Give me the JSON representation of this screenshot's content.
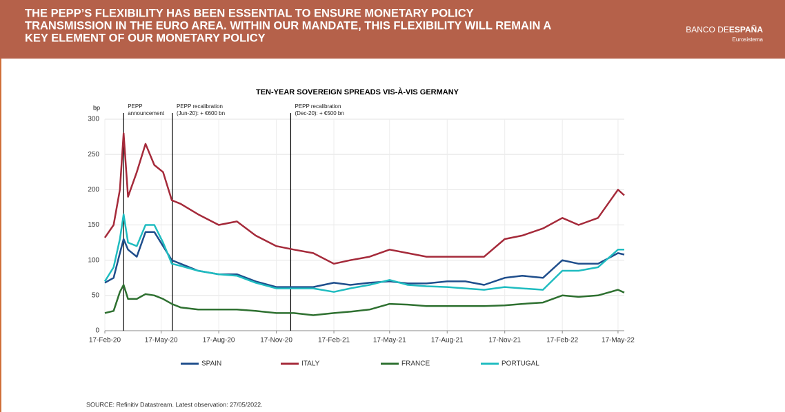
{
  "header": {
    "title_lines": [
      "THE PEPP’S FLEXIBILITY HAS BEEN ESSENTIAL TO ENSURE MONETARY POLICY",
      "TRANSMISSION IN THE EURO AREA. WITHIN OUR MANDATE, THIS FLEXIBILITY WILL REMAIN A",
      "KEY ELEMENT OF OUR MONETARY POLICY"
    ],
    "logo_light": "BANCO DE",
    "logo_bold": "ESPAÑA",
    "logo_sub": "Eurosistema"
  },
  "chart_data": {
    "type": "line",
    "title": "TEN-YEAR SOVEREIGN SPREADS VIS-À-VIS GERMANY",
    "y_label": "bp",
    "x": [
      "2020-02-17",
      "2020-03-02",
      "2020-03-12",
      "2020-03-18",
      "2020-03-25",
      "2020-04-08",
      "2020-04-22",
      "2020-05-06",
      "2020-05-20",
      "2020-06-03",
      "2020-06-17",
      "2020-07-15",
      "2020-08-17",
      "2020-09-15",
      "2020-10-15",
      "2020-11-17",
      "2020-12-15",
      "2021-01-15",
      "2021-02-17",
      "2021-03-15",
      "2021-04-15",
      "2021-05-17",
      "2021-06-15",
      "2021-07-15",
      "2021-08-17",
      "2021-09-15",
      "2021-10-15",
      "2021-11-17",
      "2021-12-15",
      "2022-01-17",
      "2022-02-17",
      "2022-03-15",
      "2022-04-15",
      "2022-05-17",
      "2022-05-27"
    ],
    "series": [
      {
        "name": "SPAIN",
        "color": "#1f4e8c",
        "values": [
          68,
          75,
          110,
          130,
          115,
          105,
          140,
          140,
          120,
          100,
          95,
          85,
          80,
          80,
          70,
          62,
          62,
          62,
          68,
          65,
          68,
          70,
          67,
          67,
          70,
          70,
          65,
          75,
          78,
          75,
          100,
          95,
          95,
          110,
          108
        ]
      },
      {
        "name": "ITALY",
        "color": "#a52a3a",
        "values": [
          132,
          150,
          200,
          280,
          190,
          225,
          265,
          235,
          225,
          185,
          180,
          165,
          150,
          155,
          135,
          120,
          115,
          110,
          95,
          100,
          105,
          115,
          110,
          105,
          105,
          105,
          105,
          130,
          135,
          145,
          160,
          150,
          160,
          200,
          192
        ]
      },
      {
        "name": "FRANCE",
        "color": "#2e7030",
        "values": [
          25,
          28,
          55,
          65,
          45,
          45,
          52,
          50,
          45,
          38,
          33,
          30,
          30,
          30,
          28,
          25,
          25,
          22,
          25,
          27,
          30,
          38,
          37,
          35,
          35,
          35,
          35,
          36,
          38,
          40,
          50,
          48,
          50,
          58,
          54
        ]
      },
      {
        "name": "PORTUGAL",
        "color": "#1fbcc0",
        "values": [
          70,
          90,
          130,
          165,
          125,
          120,
          150,
          150,
          125,
          95,
          92,
          85,
          80,
          78,
          68,
          60,
          60,
          60,
          55,
          60,
          65,
          72,
          65,
          63,
          62,
          60,
          58,
          62,
          60,
          58,
          85,
          85,
          90,
          115,
          115
        ]
      }
    ],
    "xlim": [
      "2020-02-17",
      "2022-05-27"
    ],
    "xticks": [
      {
        "value": "2020-02-17",
        "label": "17-Feb-20"
      },
      {
        "value": "2020-05-17",
        "label": "17-May-20"
      },
      {
        "value": "2020-08-17",
        "label": "17-Aug-20"
      },
      {
        "value": "2020-11-17",
        "label": "17-Nov-20"
      },
      {
        "value": "2021-02-17",
        "label": "17-Feb-21"
      },
      {
        "value": "2021-05-17",
        "label": "17-May-21"
      },
      {
        "value": "2021-08-17",
        "label": "17-Aug-21"
      },
      {
        "value": "2021-11-17",
        "label": "17-Nov-21"
      },
      {
        "value": "2022-02-17",
        "label": "17-Feb-22"
      },
      {
        "value": "2022-05-17",
        "label": "17-May-22"
      }
    ],
    "ylim": [
      0,
      300
    ],
    "yticks": [
      0,
      50,
      100,
      150,
      200,
      250,
      300
    ],
    "grid": true,
    "annotations": [
      {
        "x": "2020-03-18",
        "lines": [
          "PEPP",
          "announcement"
        ]
      },
      {
        "x": "2020-06-04",
        "lines": [
          "PEPP recalibration",
          "(Jun-20): + €600 bn"
        ]
      },
      {
        "x": "2020-12-10",
        "lines": [
          "PEPP recalibration",
          "(Dec-20): + €500 bn"
        ]
      }
    ],
    "source": "SOURCE: Refinitiv Datastream. Latest observation: 27/05/2022."
  }
}
